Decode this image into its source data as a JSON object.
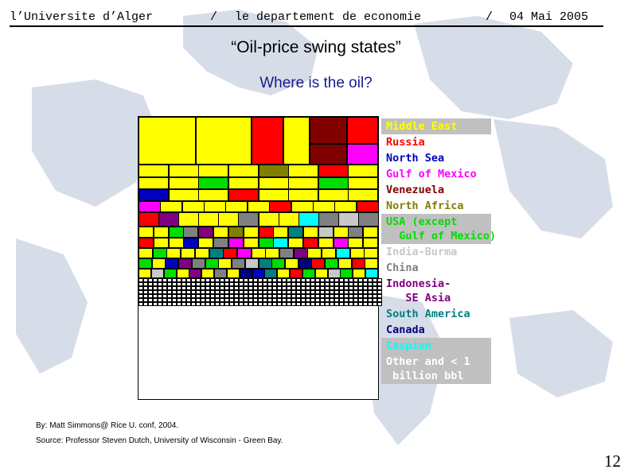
{
  "header": {
    "university": "l’Universite d’Alger",
    "sep1": "/",
    "department": "le departement de economie",
    "sep2": "/",
    "date": "04 Mai 2005"
  },
  "slide": {
    "title": "“Oil-price swing states”",
    "subtitle": "Where is the oil?",
    "page_number": "12"
  },
  "legend": [
    {
      "label": "Middle East",
      "color": "#ffff00",
      "highlight": true
    },
    {
      "label": "Russia",
      "color": "#ff0000",
      "highlight": false
    },
    {
      "label": "North Sea",
      "color": "#0000c0",
      "highlight": false
    },
    {
      "label": "Gulf of Mexico",
      "color": "#ff00ff",
      "highlight": false
    },
    {
      "label": "Venezuela",
      "color": "#800000",
      "highlight": false
    },
    {
      "label": "North Africa",
      "color": "#808000",
      "highlight": false
    },
    {
      "label": "USA (except\n  Gulf of Mexico)",
      "color": "#00dd00",
      "highlight": true
    },
    {
      "label": "India-Burma",
      "color": "#c8c8c8",
      "highlight": false
    },
    {
      "label": "China",
      "color": "#808080",
      "highlight": false
    },
    {
      "label": "Indonesia-\n   SE Asia",
      "color": "#800080",
      "highlight": false
    },
    {
      "label": "South America",
      "color": "#008080",
      "highlight": false
    },
    {
      "label": "Canada",
      "color": "#000080",
      "highlight": false
    },
    {
      "label": "Caspian",
      "color": "#00ffff",
      "highlight": true
    },
    {
      "label": "Other and < 1\n billion bbl",
      "color": "#ffffff",
      "highlight": true
    }
  ],
  "credits": {
    "by": "By: Matt Simmons@ Rice U. conf, 2004.",
    "source": "Source: Professor Steven Dutch, University of Wisconsin - Green Bay."
  }
}
